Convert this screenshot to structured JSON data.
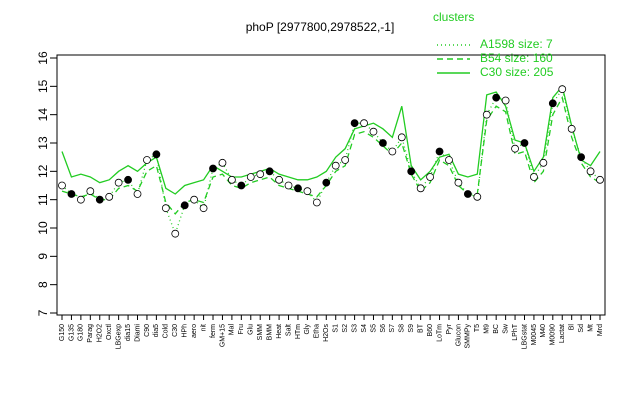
{
  "chart_data": {
    "type": "line",
    "title": "phoP [2977800,2978522,-1]",
    "legend_title": "clusters",
    "categories": [
      "G150",
      "G135",
      "G180",
      "Parag",
      "H2O2",
      "Oxctl",
      "LBGexp",
      "dia15",
      "Diami",
      "C90",
      "dia5",
      "Cold",
      "C30",
      "HPh",
      "aero",
      "nit",
      "ferm",
      "GM+15",
      "Mal",
      "Fru",
      "Glu",
      "SMM",
      "BMM",
      "Heat",
      "Salt",
      "HTm",
      "Gly",
      "Etha",
      "H2Os",
      "S1",
      "S2",
      "S3",
      "S4",
      "S5",
      "S6",
      "S7",
      "S8",
      "S9",
      "BT",
      "B60",
      "LoTm",
      "Pyr",
      "Glucon",
      "SMMPy",
      "T5",
      "M9",
      "BC",
      "Sw",
      "LPhT",
      "LBGstat",
      "M0045",
      "M40",
      "M0090",
      "Lactat",
      "Bl",
      "Sd",
      "Mt",
      "Mrd"
    ],
    "values": [
      11.5,
      11.2,
      11.0,
      11.3,
      11.0,
      11.1,
      11.6,
      11.7,
      11.2,
      12.4,
      12.6,
      10.7,
      9.8,
      10.8,
      11.0,
      10.7,
      12.1,
      12.3,
      11.7,
      11.5,
      11.8,
      11.9,
      12.0,
      11.7,
      11.5,
      11.4,
      11.3,
      10.9,
      11.6,
      12.2,
      12.4,
      13.7,
      13.7,
      13.4,
      13.0,
      12.7,
      13.2,
      12.0,
      11.4,
      11.8,
      12.7,
      12.4,
      11.6,
      11.2,
      11.1,
      14.0,
      14.6,
      14.5,
      12.8,
      13.0,
      11.8,
      12.3,
      14.4,
      14.9,
      13.5,
      12.5,
      12.0,
      11.7
    ],
    "series": [
      {
        "name": "A1598 size: 7",
        "color": "#22cc22",
        "dash": "1,3",
        "values": [
          11.5,
          11.2,
          11.0,
          11.3,
          11.0,
          11.1,
          11.6,
          11.7,
          11.2,
          12.4,
          12.6,
          10.7,
          9.8,
          10.8,
          11.0,
          10.7,
          12.1,
          12.3,
          11.7,
          11.5,
          11.8,
          11.9,
          12.0,
          11.7,
          11.5,
          11.4,
          11.3,
          10.9,
          11.6,
          12.2,
          12.4,
          13.7,
          13.7,
          13.4,
          13.0,
          12.7,
          13.2,
          12.0,
          11.4,
          11.8,
          12.7,
          12.4,
          11.6,
          11.2,
          11.1,
          14.0,
          14.6,
          14.5,
          12.8,
          13.0,
          11.8,
          12.3,
          14.4,
          14.9,
          13.5,
          12.5,
          12.0,
          11.7
        ]
      },
      {
        "name": "B54 size: 160",
        "color": "#22cc22",
        "dash": "6,4",
        "values": [
          11.3,
          11.2,
          11.1,
          11.2,
          11.0,
          11.0,
          11.4,
          11.5,
          11.3,
          12.0,
          12.2,
          10.9,
          10.5,
          10.9,
          11.0,
          10.9,
          11.8,
          11.9,
          11.5,
          11.4,
          11.6,
          11.7,
          11.8,
          11.5,
          11.4,
          11.3,
          11.2,
          11.1,
          11.5,
          12.0,
          12.2,
          13.3,
          13.4,
          13.2,
          12.9,
          12.6,
          13.0,
          11.9,
          11.3,
          11.6,
          12.4,
          12.2,
          11.5,
          11.2,
          11.2,
          13.8,
          14.3,
          14.1,
          12.6,
          12.7,
          11.6,
          12.0,
          14.0,
          14.6,
          13.2,
          12.3,
          11.8,
          11.6
        ]
      },
      {
        "name": "C30 size: 205",
        "color": "#22cc22",
        "dash": "none",
        "values": [
          12.7,
          11.8,
          11.9,
          11.8,
          11.6,
          11.7,
          12.0,
          12.2,
          12.0,
          12.3,
          12.5,
          11.4,
          11.2,
          11.5,
          11.6,
          11.7,
          12.2,
          12.0,
          11.8,
          11.8,
          11.9,
          12.0,
          12.1,
          11.9,
          11.8,
          11.7,
          11.7,
          11.8,
          12.0,
          12.5,
          12.8,
          13.5,
          13.6,
          13.7,
          13.5,
          13.2,
          14.3,
          12.2,
          11.7,
          12.0,
          12.5,
          12.6,
          11.9,
          11.8,
          11.9,
          14.7,
          14.8,
          14.3,
          13.1,
          13.0,
          12.0,
          12.5,
          14.6,
          15.0,
          13.6,
          12.4,
          12.2,
          12.7
        ]
      }
    ],
    "ylim": [
      7,
      16
    ],
    "yticks": [
      7,
      8,
      9,
      10,
      11,
      12,
      13,
      14,
      15,
      16
    ]
  }
}
